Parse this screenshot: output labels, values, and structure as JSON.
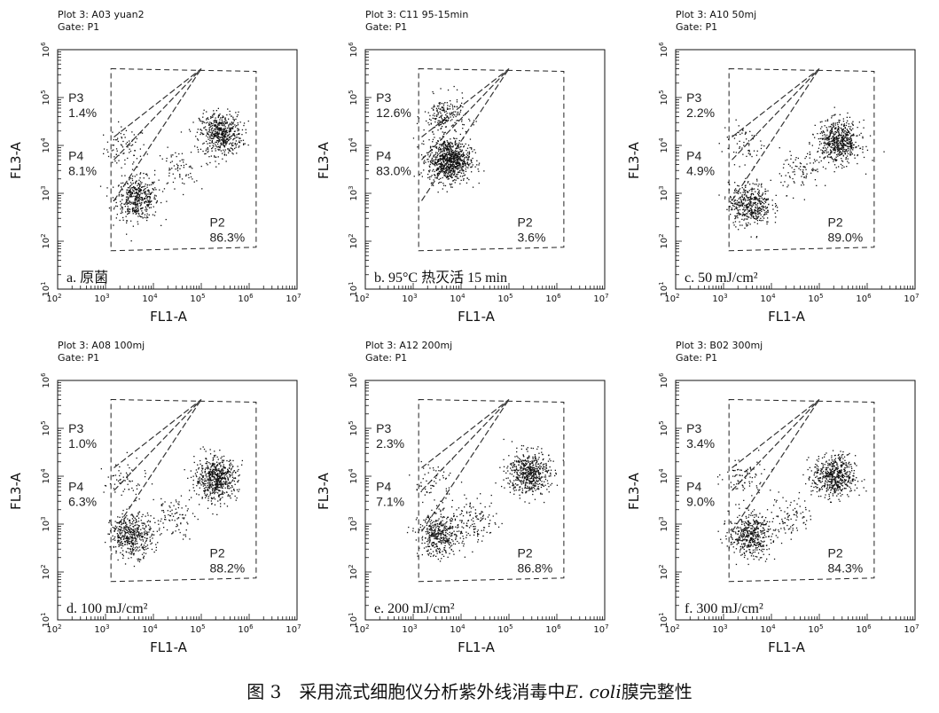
{
  "figure": {
    "caption_prefix": "图 3　采用流式细胞仪分析紫外线消毒中",
    "caption_italic": "E. coli",
    "caption_suffix": "膜完整性"
  },
  "chart_data": [
    {
      "type": "scatter",
      "title": "Plot 3: A03 yuan2",
      "gate": "Gate:  P1",
      "xlabel": "FL1-A",
      "ylabel": "FL3-A",
      "xscale": "log",
      "yscale": "log",
      "xlim": [
        100,
        10000000
      ],
      "ylim": [
        10,
        1000000
      ],
      "panel_label": "a. 原菌",
      "gates": [
        {
          "name": "P3",
          "percent": "1.4%"
        },
        {
          "name": "P4",
          "percent": "8.1%"
        },
        {
          "name": "P2",
          "percent": "86.3%"
        }
      ],
      "clusters": [
        {
          "x": 2500,
          "y": 9000,
          "count": 80
        },
        {
          "x": 4500,
          "y": 800,
          "count": 450
        },
        {
          "x": 30000,
          "y": 3000,
          "count": 70
        },
        {
          "x": 250000,
          "y": 18000,
          "count": 550
        }
      ]
    },
    {
      "type": "scatter",
      "title": "Plot 3: C11 95-15min",
      "gate": "Gate:  P1",
      "xlabel": "FL1-A",
      "ylabel": "FL3-A",
      "xscale": "log",
      "yscale": "log",
      "xlim": [
        100,
        10000000
      ],
      "ylim": [
        10,
        1000000
      ],
      "panel_label": "b. 95°C 热灭活 15 min",
      "gates": [
        {
          "name": "P3",
          "percent": "12.6%"
        },
        {
          "name": "P4",
          "percent": "83.0%"
        },
        {
          "name": "P2",
          "percent": "3.6%"
        }
      ],
      "clusters": [
        {
          "x": 4500,
          "y": 40000,
          "count": 200
        },
        {
          "x": 5500,
          "y": 5000,
          "count": 850
        }
      ]
    },
    {
      "type": "scatter",
      "title": "Plot 3: A10 50mj",
      "gate": "Gate:  P1",
      "xlabel": "FL1-A",
      "ylabel": "FL3-A",
      "xscale": "log",
      "yscale": "log",
      "xlim": [
        100,
        10000000
      ],
      "ylim": [
        10,
        1000000
      ],
      "panel_label": "c. 50 mJ/cm²",
      "gates": [
        {
          "name": "P3",
          "percent": "2.2%"
        },
        {
          "name": "P4",
          "percent": "4.9%"
        },
        {
          "name": "P2",
          "percent": "89.0%"
        }
      ],
      "clusters": [
        {
          "x": 2500,
          "y": 12000,
          "count": 60
        },
        {
          "x": 3500,
          "y": 600,
          "count": 450
        },
        {
          "x": 40000,
          "y": 3000,
          "count": 90
        },
        {
          "x": 250000,
          "y": 12000,
          "count": 600
        }
      ]
    },
    {
      "type": "scatter",
      "title": "Plot 3: A08 100mj",
      "gate": "Gate:  P1",
      "xlabel": "FL1-A",
      "ylabel": "FL3-A",
      "xscale": "log",
      "yscale": "log",
      "xlim": [
        100,
        10000000
      ],
      "ylim": [
        10,
        1000000
      ],
      "panel_label": "d. 100 mJ/cm²",
      "gates": [
        {
          "name": "P3",
          "percent": "1.0%"
        },
        {
          "name": "P4",
          "percent": "6.3%"
        },
        {
          "name": "P2",
          "percent": "88.2%"
        }
      ],
      "clusters": [
        {
          "x": 2500,
          "y": 8000,
          "count": 60
        },
        {
          "x": 3500,
          "y": 600,
          "count": 450
        },
        {
          "x": 25000,
          "y": 1500,
          "count": 90
        },
        {
          "x": 200000,
          "y": 9000,
          "count": 600
        }
      ]
    },
    {
      "type": "scatter",
      "title": "Plot 3: A12 200mj",
      "gate": "Gate:  P1",
      "xlabel": "FL1-A",
      "ylabel": "FL3-A",
      "xscale": "log",
      "yscale": "log",
      "xlim": [
        100,
        10000000
      ],
      "ylim": [
        10,
        1000000
      ],
      "panel_label": "e. 200 mJ/cm²",
      "gates": [
        {
          "name": "P3",
          "percent": "2.3%"
        },
        {
          "name": "P4",
          "percent": "7.1%"
        },
        {
          "name": "P2",
          "percent": "86.8%"
        }
      ],
      "clusters": [
        {
          "x": 2500,
          "y": 8000,
          "count": 60
        },
        {
          "x": 3500,
          "y": 600,
          "count": 420
        },
        {
          "x": 20000,
          "y": 1200,
          "count": 120
        },
        {
          "x": 250000,
          "y": 12000,
          "count": 550
        }
      ]
    },
    {
      "type": "scatter",
      "title": "Plot 3: B02 300mj",
      "gate": "Gate:  P1",
      "xlabel": "FL1-A",
      "ylabel": "FL3-A",
      "xscale": "log",
      "yscale": "log",
      "xlim": [
        100,
        10000000
      ],
      "ylim": [
        10,
        1000000
      ],
      "panel_label": "f.  300 mJ/cm²",
      "gates": [
        {
          "name": "P3",
          "percent": "3.4%"
        },
        {
          "name": "P4",
          "percent": "9.0%"
        },
        {
          "name": "P2",
          "percent": "84.3%"
        }
      ],
      "clusters": [
        {
          "x": 2500,
          "y": 9000,
          "count": 80
        },
        {
          "x": 3500,
          "y": 600,
          "count": 450
        },
        {
          "x": 25000,
          "y": 1500,
          "count": 90
        },
        {
          "x": 200000,
          "y": 10000,
          "count": 550
        }
      ]
    }
  ]
}
